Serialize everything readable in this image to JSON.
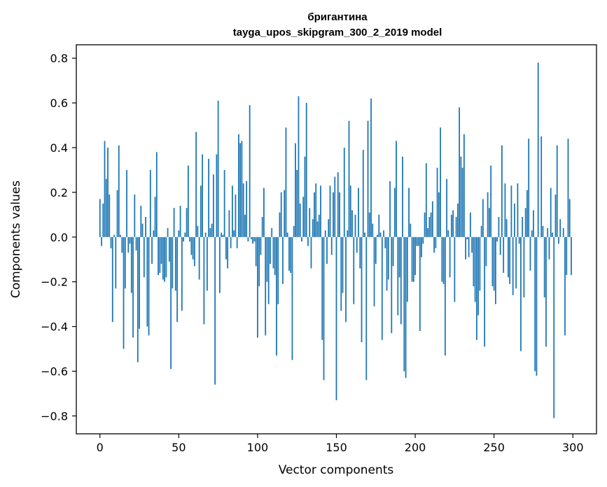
{
  "chart_data": {
    "type": "bar",
    "title": "бригантина",
    "subtitle": "tayga_upos_skipgram_300_2_2019 model",
    "xlabel": "Vector components",
    "ylabel": "Components values",
    "xlim": [
      -15,
      315
    ],
    "ylim": [
      -0.88,
      0.86
    ],
    "xticks": [
      0,
      50,
      100,
      150,
      200,
      250,
      300
    ],
    "yticks": [
      -0.8,
      -0.6,
      -0.4,
      -0.2,
      0.0,
      0.2,
      0.4,
      0.6,
      0.8
    ],
    "bar_color": "#1f77b4",
    "grid": false,
    "values": [
      0.17,
      -0.04,
      0.15,
      0.43,
      0.26,
      0.4,
      0.19,
      -0.05,
      -0.38,
      0.01,
      -0.23,
      0.21,
      0.41,
      0.01,
      -0.07,
      -0.5,
      -0.23,
      0.3,
      -0.07,
      -0.03,
      -0.25,
      -0.45,
      0.19,
      -0.06,
      -0.56,
      -0.41,
      0.14,
      0.06,
      -0.18,
      0.09,
      -0.4,
      -0.44,
      0.3,
      -0.12,
      0.03,
      0.18,
      0.38,
      -0.17,
      -0.16,
      -0.12,
      -0.19,
      -0.2,
      -0.18,
      0.04,
      -0.11,
      -0.59,
      -0.23,
      0.13,
      -0.24,
      -0.38,
      0.03,
      0.14,
      -0.33,
      -0.02,
      0.02,
      0.13,
      0.32,
      -0.02,
      -0.08,
      -0.1,
      -0.13,
      0.47,
      0.05,
      -0.19,
      0.23,
      0.37,
      -0.39,
      0.02,
      -0.24,
      0.35,
      0.04,
      0.06,
      0.28,
      -0.66,
      0.37,
      0.61,
      -0.25,
      0.02,
      0.01,
      0.3,
      -0.1,
      -0.14,
      0.12,
      -0.05,
      0.23,
      0.03,
      0.19,
      -0.05,
      0.46,
      0.42,
      0.43,
      0.24,
      0.1,
      0.25,
      -0.02,
      0.59,
      -0.01,
      -0.03,
      -0.02,
      -0.13,
      -0.45,
      -0.22,
      -0.08,
      0.09,
      0.22,
      -0.44,
      -0.2,
      -0.3,
      -0.12,
      0.04,
      -0.14,
      -0.17,
      -0.53,
      -0.3,
      0.11,
      0.2,
      -0.21,
      0.21,
      0.49,
      0.02,
      -0.15,
      -0.16,
      -0.55,
      0.05,
      0.42,
      0.3,
      0.63,
      0.15,
      -0.02,
      0.18,
      0.36,
      0.6,
      -0.04,
      0.13,
      -0.14,
      0.08,
      0.2,
      0.24,
      0.07,
      0.1,
      0.23,
      -0.46,
      -0.64,
      0.03,
      -0.12,
      0.08,
      0.23,
      -0.08,
      0.2,
      0.27,
      -0.73,
      0.29,
      0.2,
      -0.33,
      -0.25,
      0.4,
      -0.38,
      0.03,
      0.52,
      0.23,
      0.12,
      -0.3,
      0.1,
      -0.07,
      0.22,
      -0.14,
      -0.47,
      0.39,
      0.02,
      -0.64,
      0.52,
      0.11,
      0.62,
      0.06,
      -0.31,
      -0.12,
      0.01,
      0.1,
      0.02,
      -0.46,
      0.03,
      -0.05,
      -0.24,
      -0.19,
      0.25,
      -0.43,
      -0.13,
      0.22,
      0.43,
      -0.35,
      -0.18,
      -0.39,
      0.36,
      -0.6,
      -0.63,
      -0.29,
      0.22,
      0.06,
      -0.2,
      -0.2,
      -0.17,
      -0.04,
      -0.04,
      -0.42,
      -0.09,
      -0.03,
      0.11,
      0.33,
      0.04,
      0.09,
      0.11,
      0.16,
      -0.07,
      -0.05,
      0.31,
      0.2,
      0.49,
      -0.2,
      -0.21,
      -0.53,
      0.26,
      0.03,
      -0.18,
      0.1,
      0.12,
      -0.29,
      0.09,
      0.15,
      0.58,
      0.36,
      0.31,
      0.46,
      -0.1,
      -0.01,
      -0.09,
      0.11,
      -0.07,
      -0.22,
      -0.29,
      -0.46,
      -0.35,
      -0.24,
      0.05,
      0.17,
      -0.49,
      -0.13,
      0.2,
      0.13,
      0.32,
      -0.22,
      -0.24,
      -0.3,
      -0.02,
      0.09,
      -0.08,
      0.41,
      -0.16,
      0.24,
      0.08,
      -0.18,
      -0.21,
      0.23,
      -0.26,
      0.15,
      -0.23,
      0.24,
      -0.03,
      -0.51,
      0.09,
      -0.27,
      0.13,
      0.21,
      0.44,
      -0.15,
      0.03,
      0.12,
      -0.6,
      -0.62,
      0.78,
      0.0,
      0.45,
      0.05,
      -0.27,
      -0.49,
      0.04,
      -0.1,
      0.22,
      0.02,
      -0.81,
      0.19,
      0.41,
      -0.03,
      0.08,
      0.0,
      0.04,
      -0.44,
      -0.17,
      0.44,
      0.17,
      -0.17
    ]
  }
}
